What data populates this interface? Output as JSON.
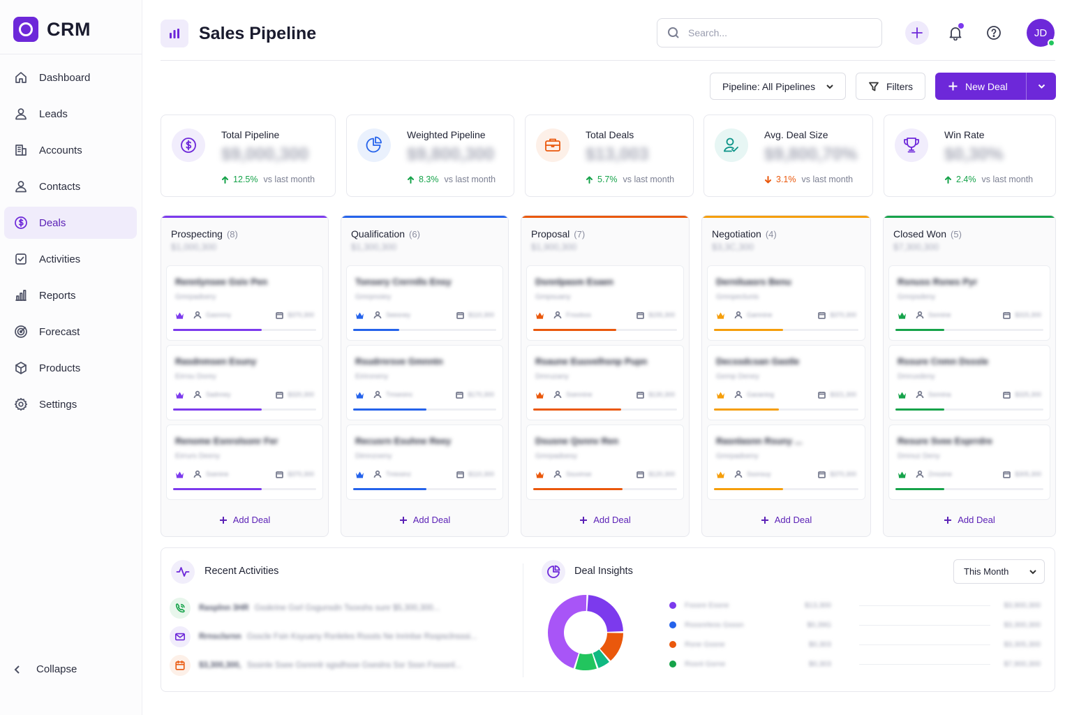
{
  "brand": {
    "name": "CRM"
  },
  "nav": [
    {
      "label": "Dashboard",
      "icon": "home-icon"
    },
    {
      "label": "Leads",
      "icon": "user-icon"
    },
    {
      "label": "Accounts",
      "icon": "building-icon"
    },
    {
      "label": "Contacts",
      "icon": "user-icon"
    },
    {
      "label": "Deals",
      "icon": "dollar-icon",
      "active": true
    },
    {
      "label": "Activities",
      "icon": "checkbox-icon"
    },
    {
      "label": "Reports",
      "icon": "bar-chart-icon"
    },
    {
      "label": "Forecast",
      "icon": "target-icon"
    },
    {
      "label": "Products",
      "icon": "box-icon"
    },
    {
      "label": "Settings",
      "icon": "gear-icon"
    }
  ],
  "collapse_label": "Collapse",
  "header": {
    "title": "Sales Pipeline",
    "search_placeholder": "Search...",
    "avatar_initials": "JD"
  },
  "toolbar": {
    "pipeline_label": "Pipeline: All Pipelines",
    "filters_label": "Filters",
    "new_deal_label": "New Deal"
  },
  "stats": [
    {
      "label": "Total Pipeline",
      "value": "$9,000,300",
      "change": "12.5%",
      "direction": "up",
      "suffix": "vs last month",
      "color": "#6d28d9",
      "bg": "#f1edfc",
      "icon": "dollar-circle-icon"
    },
    {
      "label": "Weighted Pipeline",
      "value": "$9,800,300",
      "change": "8.3%",
      "direction": "up",
      "suffix": "vs last month",
      "color": "#2563eb",
      "bg": "#eaf1fd",
      "icon": "pie-chart-icon"
    },
    {
      "label": "Total Deals",
      "value": "$13,003",
      "change": "5.7%",
      "direction": "up",
      "suffix": "vs last month",
      "color": "#ea580c",
      "bg": "#fdf0e8",
      "icon": "briefcase-icon"
    },
    {
      "label": "Avg. Deal Size",
      "value": "$9,800,70%",
      "change": "3.1%",
      "direction": "down",
      "suffix": "vs last month",
      "color": "#0d9488",
      "bg": "#e7f6f4",
      "icon": "user-check-icon"
    },
    {
      "label": "Win Rate",
      "value": "$0,30%",
      "change": "2.4%",
      "direction": "up",
      "suffix": "vs last month",
      "color": "#6d28d9",
      "bg": "#f1edfc",
      "icon": "trophy-icon"
    }
  ],
  "stat_colors": {
    "up": "#16a34a",
    "down": "#ea580c"
  },
  "columns": [
    {
      "title": "Prospecting",
      "count": "(8)",
      "total": "$1,000,300",
      "color": "#7c3aed",
      "deals": [
        {
          "name": "Rennlynsee Gsiv Pen",
          "company": "Gmrpadoery",
          "owner": "Gasnnny",
          "amount": "$370,300",
          "progress": 0.62
        },
        {
          "name": "Rasdnmsen Esuny",
          "company": "Eirrou Dorey",
          "owner": "Sadnney",
          "amount": "$320,300",
          "progress": 0.62
        },
        {
          "name": "Renome Esnrolsonr Fer",
          "company": "Eirrurs Deeny",
          "owner": "Ssenine",
          "amount": "$370,300",
          "progress": 0.62
        }
      ]
    },
    {
      "title": "Qualification",
      "count": "(6)",
      "total": "$1,300,300",
      "color": "#2563eb",
      "deals": [
        {
          "name": "Tonsery Cnrrnlls Ensy",
          "company": "Gmrpnoiey",
          "owner": "Seesney",
          "amount": "$110,300",
          "progress": 0.32
        },
        {
          "name": "Rsudrnrsve Gmnntn",
          "company": "Eirironeny",
          "owner": "Tmsesinc",
          "amount": "$170,300",
          "progress": 0.51
        },
        {
          "name": "Recusrn Esuhne Reey",
          "company": "Dimnzoeny",
          "owner": "Tmiosinz",
          "amount": "$110,300",
          "progress": 0.51
        }
      ]
    },
    {
      "title": "Proposal",
      "count": "(7)",
      "total": "$1,900,300",
      "color": "#ea580c",
      "deals": [
        {
          "name": "Dsnnlpasm Esaen",
          "company": "Gmpsuany",
          "owner": "Frssdsss",
          "amount": "$155,300",
          "progress": 0.58
        },
        {
          "name": "Rsaune Euuvelhsnp Pupn",
          "company": "Dmruzany",
          "owner": "Ssennine",
          "amount": "$130,300",
          "progress": 0.61
        },
        {
          "name": "Dsusne Qsnnv Ren",
          "company": "Gmrpadoesy",
          "owner": "Ssuvinse",
          "amount": "$120,300",
          "progress": 0.62
        }
      ]
    },
    {
      "title": "Negotiation",
      "count": "(4)",
      "total": "$3,3C,300",
      "color": "#f59e0b",
      "deals": [
        {
          "name": "Derniluasrs Benu",
          "company": "Gmnpeclunis",
          "owner": "Gamnine",
          "amount": "$370,300",
          "progress": 0.48
        },
        {
          "name": "Decssdcsan Gastle",
          "company": "Gemp Deney",
          "owner": "Gaoaniog",
          "amount": "$321,300",
          "progress": 0.45
        },
        {
          "name": "Rasnlasnn Rsuny ...",
          "company": "Gmrpadoeny",
          "owner": "Ssonsuy",
          "amount": "$370,300",
          "progress": 0.48
        }
      ]
    },
    {
      "title": "Closed Won",
      "count": "(5)",
      "total": "$7,300,300",
      "color": "#16a34a",
      "deals": [
        {
          "name": "Rsnuss Rsnes Pyr",
          "company": "Gmrpsdeny",
          "owner": "Ssnnine",
          "amount": "$315,300",
          "progress": 0.33
        },
        {
          "name": "Rssure Cnmn Dsssle",
          "company": "Dmruxdeny",
          "owner": "Ssnnina",
          "amount": "$325,300",
          "progress": 0.33
        },
        {
          "name": "Resure Svee Esprrdre",
          "company": "Dmnuz Deny",
          "owner": "Zmssine",
          "amount": "$305,300",
          "progress": 0.33
        }
      ]
    }
  ],
  "add_deal_label": "Add Deal",
  "activities": {
    "title": "Recent Activities",
    "items": [
      {
        "icon": "phone-icon",
        "color": "#16a34a",
        "bg": "#e8f6ec",
        "lead": "Rasplnn 3HR",
        "text": "Gsskrine Gsrl Gsgunsdn Tsoxshs sunr $5,300,300..."
      },
      {
        "icon": "mail-icon",
        "color": "#6d28d9",
        "bg": "#f1edfc",
        "lead": "Rrnsclsrnn",
        "text": "Gsscle Fsin Ksyuany Rsnleles Rsssts Ne Inrinlse Rsspsclnsssi..."
      },
      {
        "icon": "calendar-icon",
        "color": "#ea580c",
        "bg": "#fdf0e8",
        "lead": "$3,300,300,",
        "text": "Sssinle Ssee Gsnnnlr sgsdhsse Gseslns Ssr Sssn Fssssnl..."
      }
    ]
  },
  "insights": {
    "title": "Deal Insights",
    "period": "This Month",
    "legend": [
      {
        "name": "Fsssre Essne",
        "value": "$13,300",
        "amount": "$3,900,300",
        "color": "#7c3aed"
      },
      {
        "name": "Rsssnrleos Gsssn",
        "value": "$0,39G",
        "amount": "$3,300,300",
        "color": "#2563eb"
      },
      {
        "name": "Rsne Gssne",
        "value": "$0,303",
        "amount": "$3,305,300",
        "color": "#ea580c"
      },
      {
        "name": "Rssnt Gsrne",
        "value": "$0,303",
        "amount": "$7,900,300",
        "color": "#16a34a"
      }
    ],
    "donut": [
      {
        "color": "#7c3aed",
        "value": 24
      },
      {
        "color": "#ea580c",
        "value": 14
      },
      {
        "color": "#10b981",
        "value": 6
      },
      {
        "color": "#22c55e",
        "value": 10
      },
      {
        "color": "#a855f7",
        "value": 46
      }
    ]
  }
}
